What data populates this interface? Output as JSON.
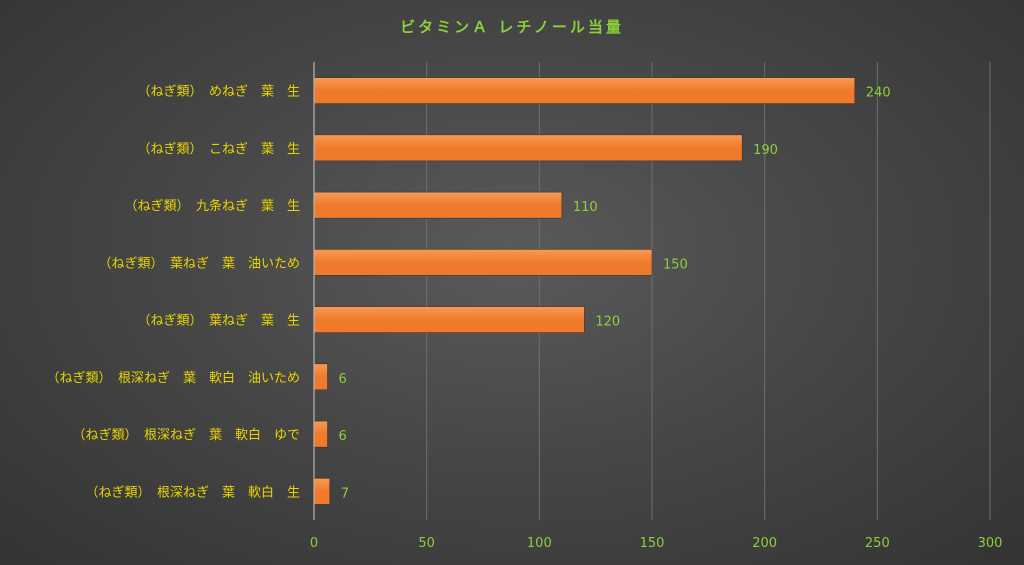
{
  "colors": {
    "bar": "#f07a2b",
    "bar_light": "#f79a56",
    "category_label": "#e8d400",
    "value_label": "#8ccf3c",
    "tick_label": "#8ccf3c",
    "title": "#8ccf3c",
    "grid": "#6e6e6e",
    "axis": "#b5b5b5"
  },
  "chart_data": {
    "type": "bar",
    "orientation": "horizontal",
    "title": "ビタミンＡ レチノール当量",
    "categories": [
      "（ねぎ類）　めねぎ　葉　生",
      "（ねぎ類）　こねぎ　葉　生",
      "（ねぎ類）　九条ねぎ　葉　生",
      "（ねぎ類）　葉ねぎ　葉　油いため",
      "（ねぎ類）　葉ねぎ　葉　生",
      "（ねぎ類）　根深ねぎ　葉　軟白　油いため",
      "（ねぎ類）　根深ねぎ　葉　軟白　ゆで",
      "（ねぎ類）　根深ねぎ　葉　軟白　生"
    ],
    "values": [
      240,
      190,
      110,
      150,
      120,
      6,
      6,
      7
    ],
    "data_labels": [
      "240",
      "190",
      "110",
      "150",
      "120",
      "6",
      "6",
      "7"
    ],
    "xlim": [
      0,
      300
    ],
    "xticks": [
      "0",
      "50",
      "100",
      "150",
      "200",
      "250",
      "300"
    ],
    "grid": "vertical",
    "legend": "none"
  }
}
